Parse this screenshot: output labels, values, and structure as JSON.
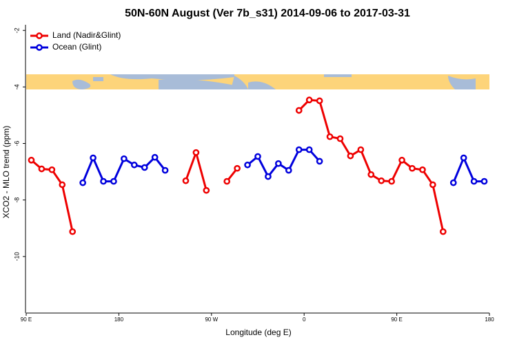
{
  "chart_data": {
    "type": "line",
    "title": "50N-60N August (Ver 7b_s31)   2014-09-06 to 2017-03-31",
    "x_label": "Longitude (deg E)",
    "y_label": "XCO2 - MLO trend (ppm)",
    "x": [
      95,
      105,
      115,
      125,
      135,
      145,
      155,
      165,
      175,
      185,
      195,
      205,
      215,
      225,
      235,
      245,
      255,
      265,
      275,
      285,
      295,
      305,
      315,
      325,
      335,
      345,
      355,
      365,
      375,
      385,
      395,
      405,
      415,
      425,
      435,
      445,
      455,
      465,
      475,
      485,
      495,
      505,
      515,
      525,
      535
    ],
    "series": [
      {
        "name": "Land (Nadir&Glint)",
        "color": "#ee0000",
        "values": [
          -6.59,
          -6.9,
          -6.93,
          -7.46,
          -9.12,
          null,
          null,
          null,
          null,
          null,
          null,
          null,
          null,
          null,
          null,
          -7.32,
          -6.32,
          -7.66,
          null,
          -7.34,
          -6.88,
          null,
          null,
          null,
          null,
          null,
          -4.83,
          -4.46,
          -4.49,
          -5.76,
          -5.83,
          -6.44,
          -6.22,
          -7.1,
          -7.32,
          -7.34,
          -6.59,
          -6.88,
          -6.93,
          -7.46,
          -9.12,
          null,
          null,
          null,
          null
        ]
      },
      {
        "name": "Ocean (Glint)",
        "color": "#0000dd",
        "values": [
          null,
          null,
          null,
          null,
          null,
          -7.39,
          -6.51,
          -7.34,
          -7.34,
          -6.54,
          -6.76,
          -6.85,
          -6.49,
          -6.95,
          null,
          null,
          null,
          null,
          null,
          null,
          null,
          -6.76,
          -6.46,
          -7.17,
          -6.71,
          -6.95,
          -6.22,
          -6.22,
          -6.63,
          null,
          null,
          null,
          null,
          null,
          null,
          null,
          null,
          null,
          null,
          null,
          null,
          -7.39,
          -6.51,
          -7.34,
          -7.34
        ]
      }
    ],
    "xlim": [
      90,
      540
    ],
    "xticks": [
      {
        "value": 90,
        "label": "90 E"
      },
      180,
      {
        "value": 270,
        "label": "90 W"
      },
      {
        "value": 360,
        "label": "0"
      },
      {
        "value": 450,
        "label": "90 E"
      },
      {
        "value": 540,
        "label": "180"
      }
    ],
    "ylim": [
      -12,
      -1.8
    ],
    "yticks": [
      -2,
      -4,
      -6,
      -8,
      -10
    ],
    "legend": "top-left"
  }
}
